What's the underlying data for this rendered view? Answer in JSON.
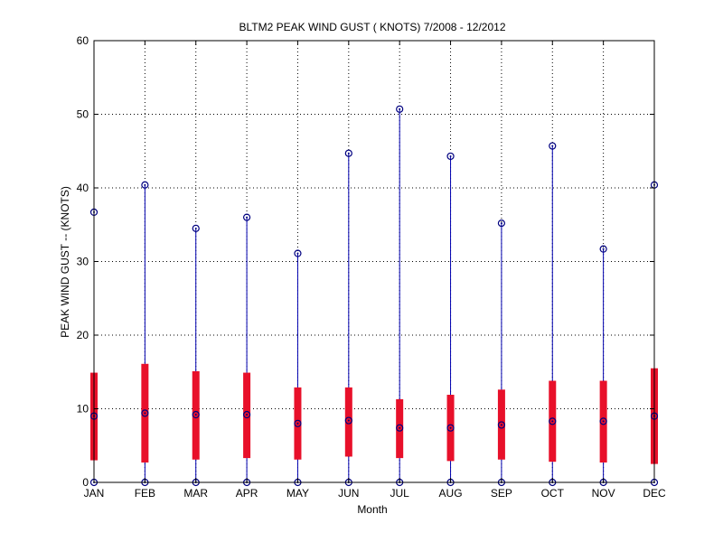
{
  "chart_data": {
    "type": "box",
    "title": "BLTM2  PEAK WIND GUST ( KNOTS) 7/2008 - 12/2012",
    "xlabel": "Month",
    "ylabel": "PEAK WIND GUST -- (KNOTS)",
    "ylim": [
      0,
      60
    ],
    "yticks": [
      0,
      10,
      20,
      30,
      40,
      50,
      60
    ],
    "grid": true,
    "categories": [
      "JAN",
      "FEB",
      "MAR",
      "APR",
      "MAY",
      "JUN",
      "JUL",
      "AUG",
      "SEP",
      "OCT",
      "NOV",
      "DEC"
    ],
    "min": [
      0,
      0,
      0,
      0,
      0,
      0,
      0,
      0,
      0,
      0,
      0,
      0
    ],
    "q1": [
      3.0,
      2.7,
      3.1,
      3.3,
      3.1,
      3.5,
      3.3,
      2.9,
      3.1,
      2.8,
      2.7,
      2.5
    ],
    "median": [
      9.0,
      9.4,
      9.2,
      9.2,
      8.0,
      8.4,
      7.4,
      7.4,
      7.8,
      8.3,
      8.3,
      9.0
    ],
    "q3": [
      14.9,
      16.1,
      15.1,
      14.9,
      12.9,
      12.9,
      11.3,
      11.9,
      12.6,
      13.8,
      13.8,
      15.5
    ],
    "max": [
      36.7,
      40.4,
      34.5,
      36.0,
      31.1,
      44.7,
      50.7,
      44.3,
      35.2,
      45.7,
      31.7,
      40.4
    ],
    "colors": {
      "box": "#e8102a",
      "whisker": "#0000b0",
      "marker": "#000080",
      "grid": "#000000",
      "axis": "#000000"
    }
  }
}
